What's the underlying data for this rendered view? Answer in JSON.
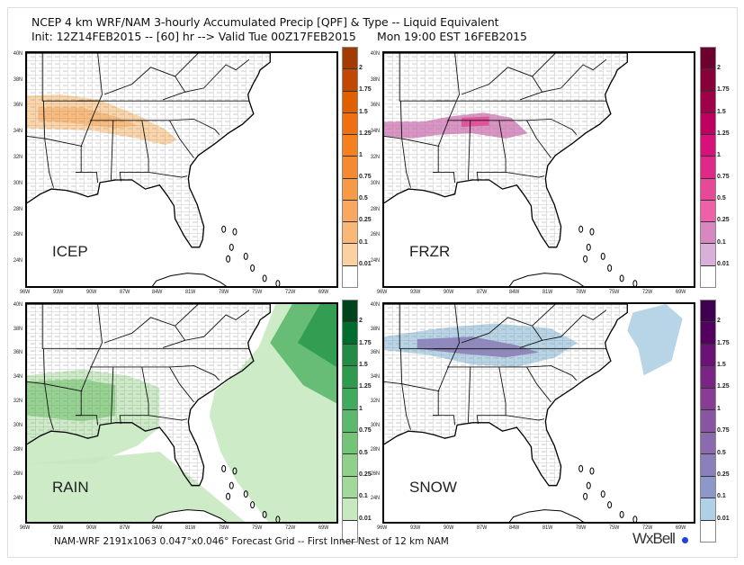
{
  "header": {
    "line1": "NCEP 4 km WRF/NAM 3-hourly Accumulated Precip [QPF] & Type -- Liquid Equivalent",
    "line2": "Init: 12Z14FEB2015 -- [60] hr --> Valid Tue 00Z17FEB2015      Mon 19:00 EST 16FEB2015"
  },
  "axes": {
    "lat_labels": [
      "40N",
      "38N",
      "36N",
      "34N",
      "32N",
      "30N",
      "28N",
      "26N",
      "24N"
    ],
    "lon_labels": [
      "96W",
      "93W",
      "90W",
      "87W",
      "84W",
      "81W",
      "78W",
      "75W",
      "72W",
      "69W"
    ]
  },
  "colorbar_levels": [
    "2",
    "1.75",
    "1.5",
    "1.25",
    "1",
    "0.75",
    "0.5",
    "0.25",
    "0.1",
    "0.01"
  ],
  "panels": [
    {
      "label": "ICEP",
      "colors": [
        "#a33a00",
        "#c04800",
        "#e06000",
        "#f07010",
        "#f58020",
        "#f68a30",
        "#f79a48",
        "#f8a860",
        "#f9b878",
        "#fcd0a0",
        "#ffffff"
      ]
    },
    {
      "label": "FRZR",
      "colors": [
        "#6e0030",
        "#880038",
        "#a00048",
        "#c00060",
        "#d8107a",
        "#e02888",
        "#e84898",
        "#ee60a8",
        "#d888c0",
        "#d8b0d8",
        "#ffffff"
      ]
    },
    {
      "label": "RAIN",
      "colors": [
        "#00441b",
        "#006d2c",
        "#238b45",
        "#2e9a4e",
        "#41ab5d",
        "#5cb86c",
        "#74c476",
        "#8fd08a",
        "#a1d99b",
        "#c7e9c0",
        "#ffffff"
      ]
    },
    {
      "label": "SNOW",
      "colors": [
        "#3f0050",
        "#54005f",
        "#6a1275",
        "#7a2585",
        "#883d95",
        "#8a55a0",
        "#8c6aae",
        "#8c80bb",
        "#8e98c8",
        "#b0d0e6",
        "#ffffff"
      ]
    }
  ],
  "footer": "NAM-WRF 2191x1063 0.047°x0.046° Forecast Grid -- First Inner Nest of 12 km NAM",
  "logo": "WxBell"
}
